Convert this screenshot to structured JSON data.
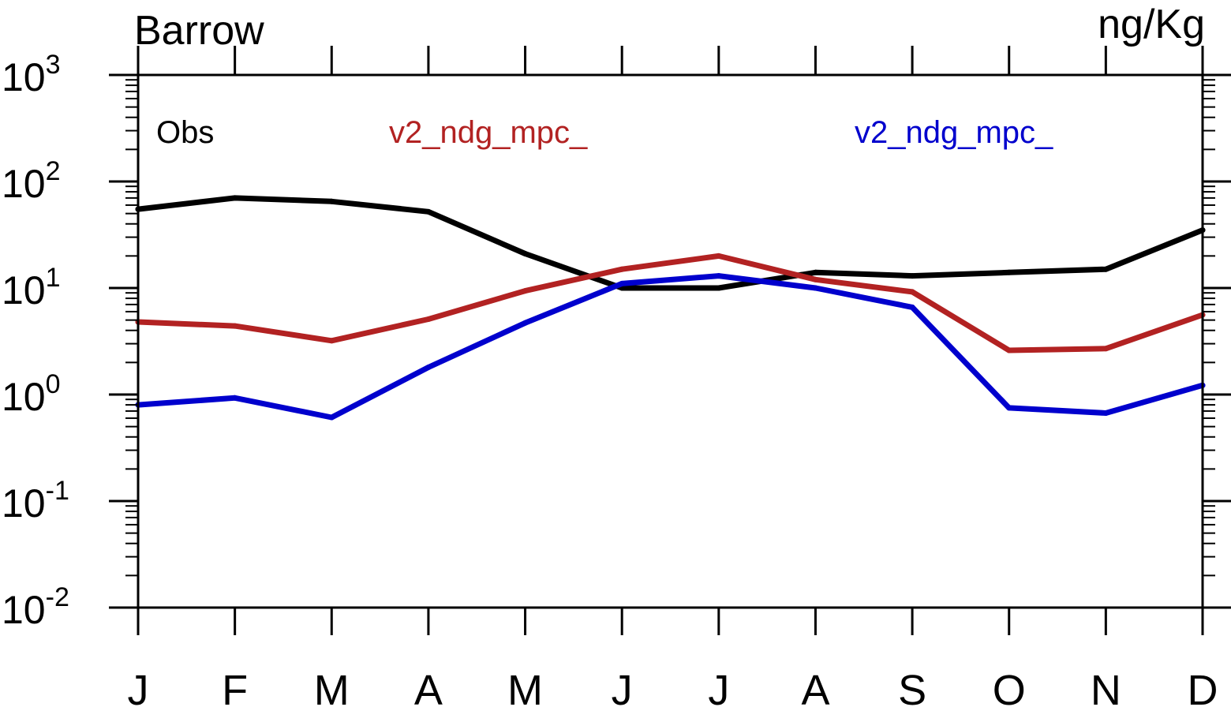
{
  "chart_data": {
    "type": "line",
    "title_left": "Barrow",
    "title_right": "ng/Kg",
    "xlabel": "",
    "ylabel": "",
    "yscale": "log",
    "ylim": [
      0.01,
      1000
    ],
    "categories": [
      "J",
      "F",
      "M",
      "A",
      "M",
      "J",
      "J",
      "A",
      "S",
      "O",
      "N",
      "D"
    ],
    "y_ticks": [
      {
        "base": "10",
        "exp": "-2"
      },
      {
        "base": "10",
        "exp": "-1"
      },
      {
        "base": "10",
        "exp": "0"
      },
      {
        "base": "10",
        "exp": "1"
      },
      {
        "base": "10",
        "exp": "2"
      },
      {
        "base": "10",
        "exp": "3"
      }
    ],
    "series": [
      {
        "name": "Obs",
        "color": "#000000",
        "values": [
          55,
          70,
          65,
          52,
          21,
          10,
          10,
          14,
          13,
          14,
          15,
          35
        ]
      },
      {
        "name": "v2_ndg_mpc_",
        "color": "#b22222",
        "values": [
          4.8,
          4.4,
          3.2,
          5.1,
          9.4,
          15,
          20,
          12,
          9.2,
          2.6,
          2.7,
          5.6
        ]
      },
      {
        "name": "v2_ndg_mpc_",
        "color": "#0000cd",
        "values": [
          0.8,
          0.93,
          0.61,
          1.8,
          4.7,
          11,
          13,
          10,
          6.6,
          0.75,
          0.67,
          1.22
        ]
      }
    ],
    "legend": "top, inside plot, horizontal"
  }
}
